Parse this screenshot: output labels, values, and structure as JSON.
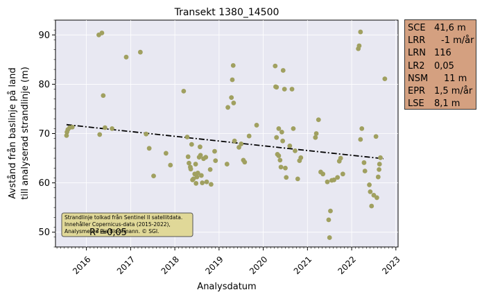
{
  "chart_data": {
    "type": "scatter",
    "title": "Transekt 1380_14500",
    "xlabel": "Analysdatum",
    "ylabel_lines": [
      "Avstånd från baslinje på land",
      "till analyserad strandlinje (m)"
    ],
    "xlim": [
      2015.3,
      2023.05
    ],
    "ylim": [
      47,
      93
    ],
    "x_ticks": [
      2016,
      2017,
      2018,
      2019,
      2020,
      2021,
      2022,
      2023
    ],
    "x_tick_labels": [
      "2016",
      "2017",
      "2018",
      "2019",
      "2020",
      "2021",
      "2022",
      "2023"
    ],
    "y_ticks": [
      50,
      60,
      70,
      80,
      90
    ],
    "y_tick_labels": [
      "50",
      "60",
      "70",
      "80",
      "90"
    ],
    "grid": true,
    "colors": {
      "plot_bg": "#e8e8f2",
      "points": "#a0a060",
      "trend": "#000000",
      "stats_bg": "#d4a080",
      "note_bg": "#e0d898"
    },
    "points": [
      [
        2015.55,
        69.6
      ],
      [
        2015.56,
        70.3
      ],
      [
        2015.58,
        70.8
      ],
      [
        2015.62,
        71.2
      ],
      [
        2015.68,
        71.3
      ],
      [
        2016.28,
        90.0
      ],
      [
        2016.35,
        90.4
      ],
      [
        2016.3,
        69.8
      ],
      [
        2016.38,
        77.7
      ],
      [
        2016.42,
        71.2
      ],
      [
        2016.58,
        71.0
      ],
      [
        2016.9,
        85.5
      ],
      [
        2017.22,
        86.5
      ],
      [
        2017.35,
        69.9
      ],
      [
        2017.42,
        67.0
      ],
      [
        2017.52,
        61.4
      ],
      [
        2017.8,
        66.0
      ],
      [
        2017.9,
        63.6
      ],
      [
        2018.2,
        78.6
      ],
      [
        2018.28,
        69.3
      ],
      [
        2018.3,
        65.3
      ],
      [
        2018.32,
        64.0
      ],
      [
        2018.35,
        63.2
      ],
      [
        2018.36,
        62.8
      ],
      [
        2018.38,
        67.8
      ],
      [
        2018.4,
        60.6
      ],
      [
        2018.42,
        60.8
      ],
      [
        2018.45,
        61.8
      ],
      [
        2018.47,
        63.8
      ],
      [
        2018.48,
        59.9
      ],
      [
        2018.5,
        61.2
      ],
      [
        2018.52,
        62.0
      ],
      [
        2018.55,
        65.2
      ],
      [
        2018.57,
        67.3
      ],
      [
        2018.58,
        65.6
      ],
      [
        2018.6,
        61.5
      ],
      [
        2018.62,
        60.0
      ],
      [
        2018.65,
        64.9
      ],
      [
        2018.7,
        65.2
      ],
      [
        2018.72,
        60.2
      ],
      [
        2018.8,
        62.7
      ],
      [
        2018.82,
        59.7
      ],
      [
        2018.9,
        66.4
      ],
      [
        2018.92,
        64.5
      ],
      [
        2019.18,
        63.8
      ],
      [
        2019.2,
        75.3
      ],
      [
        2019.28,
        77.3
      ],
      [
        2019.3,
        80.9
      ],
      [
        2019.32,
        83.8
      ],
      [
        2019.33,
        76.2
      ],
      [
        2019.35,
        68.5
      ],
      [
        2019.45,
        67.2
      ],
      [
        2019.5,
        67.9
      ],
      [
        2019.55,
        64.6
      ],
      [
        2019.58,
        64.2
      ],
      [
        2019.68,
        69.5
      ],
      [
        2019.85,
        71.7
      ],
      [
        2020.27,
        83.7
      ],
      [
        2020.28,
        79.5
      ],
      [
        2020.3,
        79.4
      ],
      [
        2020.3,
        69.2
      ],
      [
        2020.32,
        65.8
      ],
      [
        2020.35,
        71.0
      ],
      [
        2020.35,
        65.5
      ],
      [
        2020.38,
        64.6
      ],
      [
        2020.4,
        63.2
      ],
      [
        2020.42,
        70.3
      ],
      [
        2020.44,
        68.5
      ],
      [
        2020.45,
        82.8
      ],
      [
        2020.48,
        79.0
      ],
      [
        2020.5,
        63.0
      ],
      [
        2020.52,
        61.1
      ],
      [
        2020.6,
        67.5
      ],
      [
        2020.65,
        79.0
      ],
      [
        2020.68,
        71.0
      ],
      [
        2020.72,
        66.5
      ],
      [
        2020.78,
        60.8
      ],
      [
        2020.82,
        64.5
      ],
      [
        2020.85,
        65.1
      ],
      [
        2021.18,
        69.2
      ],
      [
        2021.2,
        70.0
      ],
      [
        2021.25,
        72.8
      ],
      [
        2021.3,
        62.2
      ],
      [
        2021.35,
        61.8
      ],
      [
        2021.45,
        60.2
      ],
      [
        2021.48,
        52.5
      ],
      [
        2021.5,
        48.9
      ],
      [
        2021.52,
        54.3
      ],
      [
        2021.55,
        60.5
      ],
      [
        2021.6,
        60.6
      ],
      [
        2021.68,
        61.1
      ],
      [
        2021.72,
        64.4
      ],
      [
        2021.75,
        65.0
      ],
      [
        2021.8,
        61.8
      ],
      [
        2022.15,
        87.2
      ],
      [
        2022.17,
        87.8
      ],
      [
        2022.2,
        90.6
      ],
      [
        2022.2,
        68.8
      ],
      [
        2022.23,
        71.0
      ],
      [
        2022.28,
        64.1
      ],
      [
        2022.3,
        62.4
      ],
      [
        2022.4,
        59.6
      ],
      [
        2022.42,
        58.2
      ],
      [
        2022.45,
        55.3
      ],
      [
        2022.5,
        57.5
      ],
      [
        2022.55,
        69.4
      ],
      [
        2022.57,
        57.0
      ],
      [
        2022.6,
        61.2
      ],
      [
        2022.62,
        62.7
      ],
      [
        2022.63,
        63.8
      ],
      [
        2022.65,
        65.1
      ],
      [
        2022.75,
        81.1
      ]
    ],
    "trend": {
      "x": [
        2015.55,
        2022.72
      ],
      "y": [
        71.8,
        64.9
      ]
    },
    "annotation_text": "R²=0,05",
    "note_lines": [
      "Strandlinje tolkad från Sentinel II satellitdata.",
      "Innehåller Copernicus-data (2015-2022),",
      "Analysmetod Pia Blockmann. © SGI."
    ],
    "stats": [
      {
        "name": "SCE",
        "value": "41,6 m"
      },
      {
        "name": "LRR",
        "value": "-1 m/år"
      },
      {
        "name": "LRN",
        "value": "116"
      },
      {
        "name": "LR2",
        "value": "0,05"
      },
      {
        "name": "NSM",
        "value": "11 m"
      },
      {
        "name": "EPR",
        "value": "1,5 m/år"
      },
      {
        "name": "LSE",
        "value": "8,1 m"
      }
    ]
  }
}
